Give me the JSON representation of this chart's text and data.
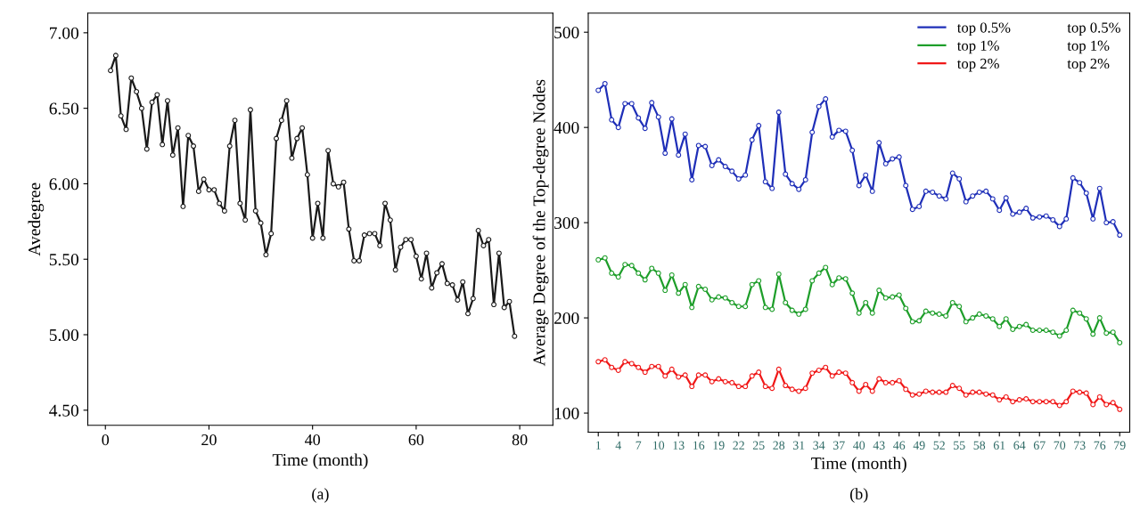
{
  "chart_data": [
    {
      "type": "line",
      "xlabel": "Time (month)",
      "ylabel": "Avedegree",
      "annotations": [
        "(a)"
      ],
      "marker": "circle",
      "grid": false,
      "legend": false,
      "x": [
        1,
        2,
        3,
        4,
        5,
        6,
        7,
        8,
        9,
        10,
        11,
        12,
        13,
        14,
        15,
        16,
        17,
        18,
        19,
        20,
        21,
        22,
        23,
        24,
        25,
        26,
        27,
        28,
        29,
        30,
        31,
        32,
        33,
        34,
        35,
        36,
        37,
        38,
        39,
        40,
        41,
        42,
        43,
        44,
        45,
        46,
        47,
        48,
        49,
        50,
        51,
        52,
        53,
        54,
        55,
        56,
        57,
        58,
        59,
        60,
        61,
        62,
        63,
        64,
        65,
        66,
        67,
        68,
        69,
        70,
        71,
        72,
        73,
        74,
        75,
        76,
        77,
        78,
        79
      ],
      "series": [
        {
          "color": "#1a1a1a",
          "values": [
            6.75,
            6.85,
            6.45,
            6.36,
            6.7,
            6.61,
            6.5,
            6.23,
            6.54,
            6.59,
            6.26,
            6.55,
            6.19,
            6.37,
            5.85,
            6.32,
            6.25,
            5.95,
            6.03,
            5.96,
            5.96,
            5.87,
            5.82,
            6.25,
            6.42,
            5.87,
            5.76,
            6.49,
            5.82,
            5.74,
            5.53,
            5.67,
            6.3,
            6.42,
            6.55,
            6.17,
            6.3,
            6.37,
            6.06,
            5.64,
            5.87,
            5.64,
            6.22,
            6.0,
            5.98,
            6.01,
            5.7,
            5.49,
            5.49,
            5.66,
            5.67,
            5.67,
            5.59,
            5.87,
            5.76,
            5.43,
            5.58,
            5.63,
            5.63,
            5.52,
            5.37,
            5.54,
            5.31,
            5.41,
            5.47,
            5.34,
            5.33,
            5.23,
            5.35,
            5.14,
            5.24,
            5.69,
            5.59,
            5.63,
            5.2,
            5.54,
            5.18,
            5.22,
            4.99
          ]
        }
      ],
      "xlim": [
        -3.4,
        86.4
      ],
      "xticks": [
        0,
        20,
        40,
        60,
        80
      ],
      "ylim": [
        4.4,
        7.13
      ],
      "yticks": [
        {
          "value": 4.5,
          "label": "4.50"
        },
        {
          "value": 5.0,
          "label": "5.00"
        },
        {
          "value": 5.5,
          "label": "5.50"
        },
        {
          "value": 6.0,
          "label": "6.00"
        },
        {
          "value": 6.5,
          "label": "6.50"
        },
        {
          "value": 7.0,
          "label": "7.00"
        }
      ]
    },
    {
      "type": "line",
      "xlabel": "Time (month)",
      "ylabel": "Average Degree of the Top-degree Nodes",
      "annotations": [
        "(b)"
      ],
      "marker": "circle",
      "grid": false,
      "legend": "top right",
      "categories": [
        "1",
        null,
        null,
        "4",
        null,
        null,
        "7",
        null,
        null,
        "10",
        null,
        null,
        "13",
        null,
        null,
        "16",
        null,
        null,
        "19",
        null,
        null,
        "22",
        null,
        null,
        "25",
        null,
        null,
        "28",
        null,
        null,
        "31",
        null,
        null,
        "34",
        null,
        null,
        "37",
        null,
        null,
        "40",
        null,
        null,
        "43",
        null,
        null,
        "46",
        null,
        null,
        "49",
        null,
        null,
        "52",
        null,
        null,
        "55",
        null,
        null,
        "58",
        null,
        null,
        "61",
        null,
        null,
        "64",
        null,
        null,
        "67",
        null,
        null,
        "70",
        null,
        null,
        "73",
        null,
        null,
        "76",
        null,
        null,
        "79"
      ],
      "series": [
        {
          "name": "top 0.5%",
          "color": "#1f2fb8",
          "values": [
            439,
            446,
            408,
            400,
            425,
            425,
            410,
            399,
            426,
            411,
            373,
            409,
            371,
            393,
            345,
            381,
            380,
            360,
            366,
            359,
            354,
            346,
            350,
            387,
            402,
            343,
            336,
            416,
            351,
            341,
            335,
            345,
            395,
            422,
            430,
            390,
            397,
            396,
            376,
            339,
            350,
            333,
            384,
            362,
            367,
            369,
            339,
            314,
            317,
            333,
            332,
            328,
            325,
            352,
            346,
            322,
            328,
            332,
            333,
            325,
            313,
            326,
            309,
            311,
            315,
            305,
            306,
            307,
            303,
            296,
            304,
            347,
            342,
            331,
            304,
            336,
            300,
            301,
            287
          ]
        },
        {
          "name": "top 1%",
          "color": "#1e9e2a",
          "values": [
            261,
            263,
            247,
            243,
            256,
            255,
            247,
            240,
            252,
            247,
            229,
            245,
            226,
            235,
            211,
            233,
            230,
            219,
            222,
            221,
            216,
            212,
            212,
            235,
            239,
            211,
            209,
            246,
            216,
            208,
            204,
            209,
            239,
            247,
            253,
            235,
            242,
            241,
            226,
            205,
            216,
            205,
            229,
            221,
            222,
            224,
            210,
            196,
            197,
            207,
            205,
            204,
            202,
            216,
            212,
            196,
            200,
            204,
            202,
            199,
            191,
            199,
            188,
            191,
            193,
            187,
            187,
            187,
            185,
            181,
            187,
            208,
            205,
            199,
            183,
            200,
            184,
            185,
            174
          ]
        },
        {
          "name": "top 2%",
          "color": "#f01818",
          "values": [
            154,
            156,
            148,
            145,
            154,
            152,
            148,
            143,
            149,
            149,
            139,
            146,
            138,
            140,
            128,
            140,
            140,
            133,
            136,
            133,
            132,
            128,
            128,
            139,
            143,
            128,
            126,
            146,
            129,
            125,
            123,
            126,
            142,
            145,
            148,
            139,
            143,
            142,
            132,
            123,
            130,
            123,
            136,
            132,
            132,
            134,
            125,
            119,
            120,
            123,
            122,
            122,
            122,
            129,
            126,
            119,
            122,
            122,
            120,
            119,
            114,
            117,
            112,
            114,
            115,
            112,
            112,
            112,
            112,
            108,
            112,
            123,
            122,
            121,
            109,
            117,
            109,
            111,
            104
          ]
        }
      ],
      "ylim": [
        80,
        520
      ],
      "yticks": [
        100,
        200,
        300,
        400,
        500
      ]
    }
  ]
}
